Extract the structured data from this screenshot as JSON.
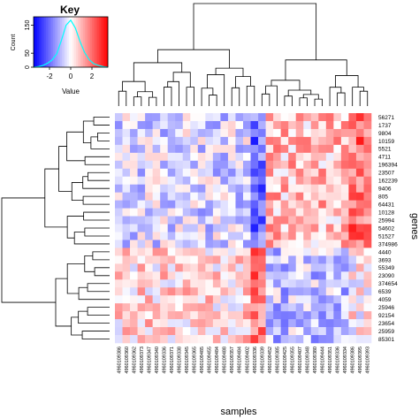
{
  "key": {
    "title": "Key",
    "ylabel": "Count",
    "xlabel": "Value",
    "xticks": [
      "-2",
      "0",
      "2"
    ],
    "yticks": [
      "0",
      "50",
      "150"
    ]
  },
  "chart_data": {
    "type": "heatmap",
    "xlabel": "samples",
    "ylabel": "genes",
    "colors": {
      "low": "#0000ff",
      "mid": "#ffffff",
      "high": "#ff0000",
      "hist": "#00ffff"
    },
    "value_range": [
      -3.5,
      3.5
    ],
    "genes": [
      "56271",
      "1737",
      "9804",
      "10159",
      "5521",
      "4711",
      "196394",
      "23507",
      "162239",
      "9406",
      "805",
      "64431",
      "10128",
      "25994",
      "54602",
      "51527",
      "374986",
      "4440",
      "3693",
      "55349",
      "23090",
      "374654",
      "6539",
      "4059",
      "25946",
      "92154",
      "23654",
      "25959",
      "85301"
    ],
    "samples": [
      "4960109386",
      "4960109360",
      "4960109362",
      "4960109373",
      "4960109347",
      "4960109340",
      "4960109336",
      "4960109371",
      "4960109338",
      "4960109345",
      "4960109365",
      "4960109485",
      "4960109455",
      "4960109484",
      "4960109488",
      "4960109357",
      "4960109484",
      "4960109402",
      "4960109336",
      "4960109339",
      "4960109452",
      "4960109385",
      "4960109425",
      "4960109355",
      "4960109407",
      "4960109348",
      "4960109380",
      "4960109444",
      "4960109351",
      "4960109336",
      "4960109334",
      "4960109386",
      "4960109395",
      "4960109393"
    ],
    "key_histogram": [
      0,
      2,
      6,
      14,
      26,
      48,
      96,
      150,
      168,
      140,
      92,
      52,
      26,
      12,
      6,
      2,
      0
    ]
  }
}
